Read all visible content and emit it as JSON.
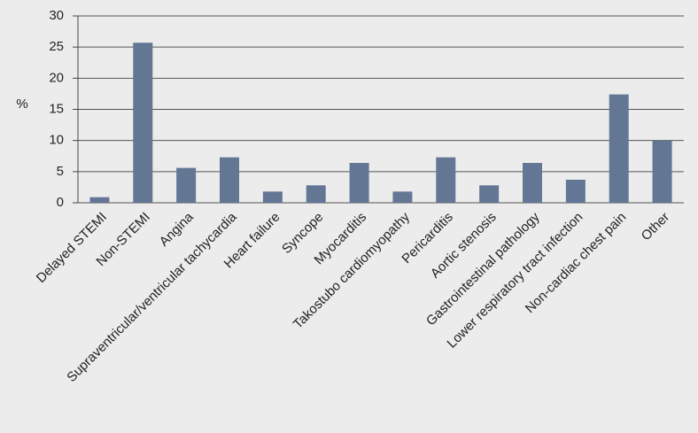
{
  "chart_data": {
    "type": "bar",
    "y_label": "%",
    "categories": [
      "Delayed STEMI",
      "Non-STEMI",
      "Angina",
      "Supraventricular/ventricular tachycardia",
      "Heart failure",
      "Syncope",
      "Myocarditis",
      "Takostubo cardiomyopathy",
      "Pericarditis",
      "Aortic stenosis",
      "Gastrointestinal pathology",
      "Lower respiratory tract infection",
      "Non-cardiac chest pain",
      "Other"
    ],
    "values": [
      0.9,
      25.7,
      5.6,
      7.3,
      1.8,
      2.8,
      6.4,
      1.8,
      7.3,
      2.8,
      6.4,
      3.7,
      17.4,
      10.0
    ],
    "color": "#637795",
    "ylim": [
      0,
      30
    ],
    "yticks": [
      0,
      5,
      10,
      15,
      20,
      25,
      30
    ],
    "grid": true
  }
}
